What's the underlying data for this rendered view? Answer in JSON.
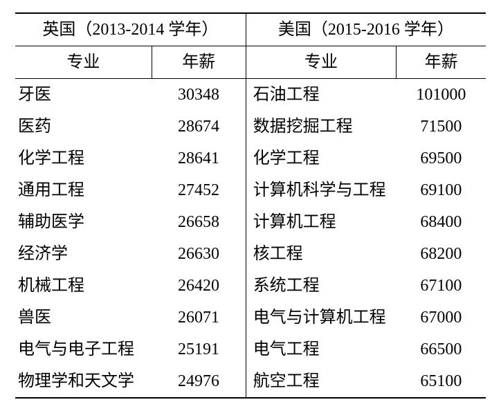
{
  "table": {
    "type": "table",
    "background_color": "#ffffff",
    "text_color": "#000000",
    "border_color": "#000000",
    "font_family": "SimSun",
    "header_fontsize": 24,
    "body_fontsize": 24,
    "top_rule_width": 2,
    "header_rule_width": 1.5,
    "vertical_rule_width": 1.5,
    "bottom_rule_width": 2,
    "column_widths_pct": [
      29,
      20,
      32,
      19
    ],
    "group_headers": {
      "uk": "英国（2013-2014 学年）",
      "us": "美国（2015-2016 学年）"
    },
    "sub_headers": {
      "major": "专业",
      "salary": "年薪"
    },
    "rows": [
      {
        "uk_major": "牙医",
        "uk_salary": "30348",
        "us_major": "石油工程",
        "us_salary": "101000"
      },
      {
        "uk_major": "医药",
        "uk_salary": "28674",
        "us_major": "数据挖掘工程",
        "us_salary": "71500"
      },
      {
        "uk_major": "化学工程",
        "uk_salary": "28641",
        "us_major": "化学工程",
        "us_salary": "69500"
      },
      {
        "uk_major": "通用工程",
        "uk_salary": "27452",
        "us_major": "计算机科学与工程",
        "us_salary": "69100"
      },
      {
        "uk_major": "辅助医学",
        "uk_salary": "26658",
        "us_major": "计算机工程",
        "us_salary": "68400"
      },
      {
        "uk_major": "经济学",
        "uk_salary": "26630",
        "us_major": "核工程",
        "us_salary": "68200"
      },
      {
        "uk_major": "机械工程",
        "uk_salary": "26420",
        "us_major": "系统工程",
        "us_salary": "67100"
      },
      {
        "uk_major": "兽医",
        "uk_salary": "26071",
        "us_major": "电气与计算机工程",
        "us_salary": "67000"
      },
      {
        "uk_major": "电气与电子工程",
        "uk_salary": "25191",
        "us_major": "电气工程",
        "us_salary": "66500"
      },
      {
        "uk_major": "物理学和天文学",
        "uk_salary": "24976",
        "us_major": "航空工程",
        "us_salary": "65100"
      }
    ]
  }
}
